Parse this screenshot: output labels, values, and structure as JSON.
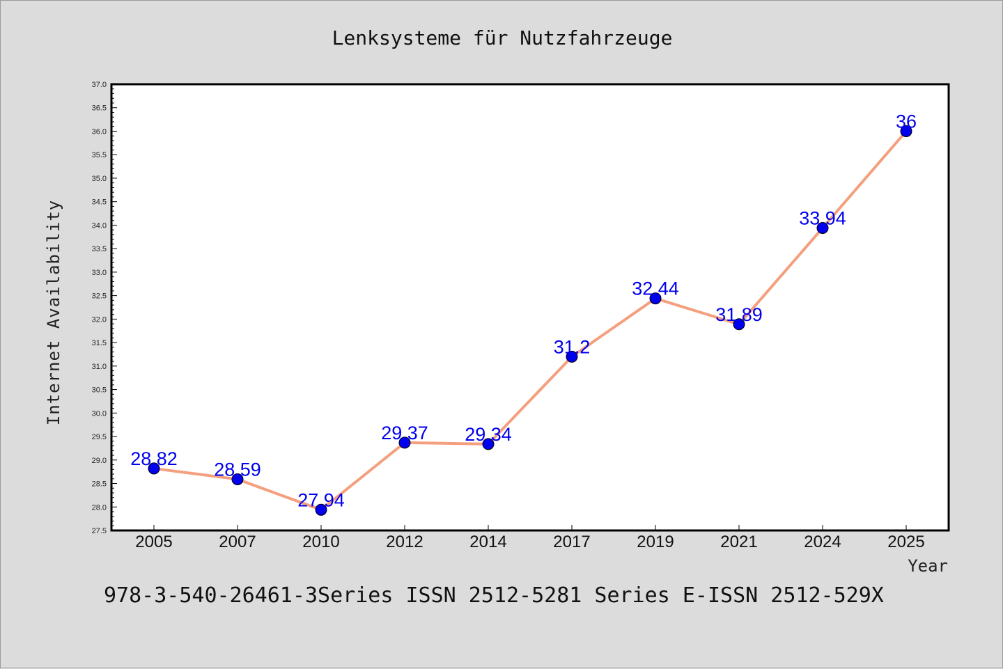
{
  "chart_data": {
    "type": "line",
    "title": "Lenksysteme für Nutzfahrzeuge",
    "xlabel": "Year",
    "ylabel": "Internet Availability",
    "categories": [
      "2005",
      "2007",
      "2010",
      "2012",
      "2014",
      "2017",
      "2019",
      "2021",
      "2024",
      "2025"
    ],
    "values": [
      28.82,
      28.59,
      27.94,
      29.37,
      29.34,
      31.2,
      32.44,
      31.89,
      33.94,
      36
    ],
    "data_labels": [
      "28.82",
      "28.59",
      "27.94",
      "29.37",
      "29.34",
      "31.2",
      "32.44",
      "31.89",
      "33.94",
      "36"
    ],
    "ylim": [
      27.5,
      37.0
    ],
    "yticks": [
      "27.5",
      "28.0",
      "28.5",
      "29.0",
      "29.5",
      "30.0",
      "30.5",
      "31.0",
      "31.5",
      "32.0",
      "32.5",
      "33.0",
      "33.5",
      "34.0",
      "34.5",
      "35.0",
      "35.5",
      "36.0",
      "36.5",
      "37.0"
    ],
    "grid": false,
    "line_color": "#f4a07f",
    "marker_color": "#0000ee",
    "label_color": "#0000ee",
    "plot_background": "#ffffff",
    "page_background": "#dcdcdc"
  },
  "footer": {
    "text": "978-3-540-26461-3Series ISSN 2512-5281 Series E-ISSN 2512-529X"
  }
}
